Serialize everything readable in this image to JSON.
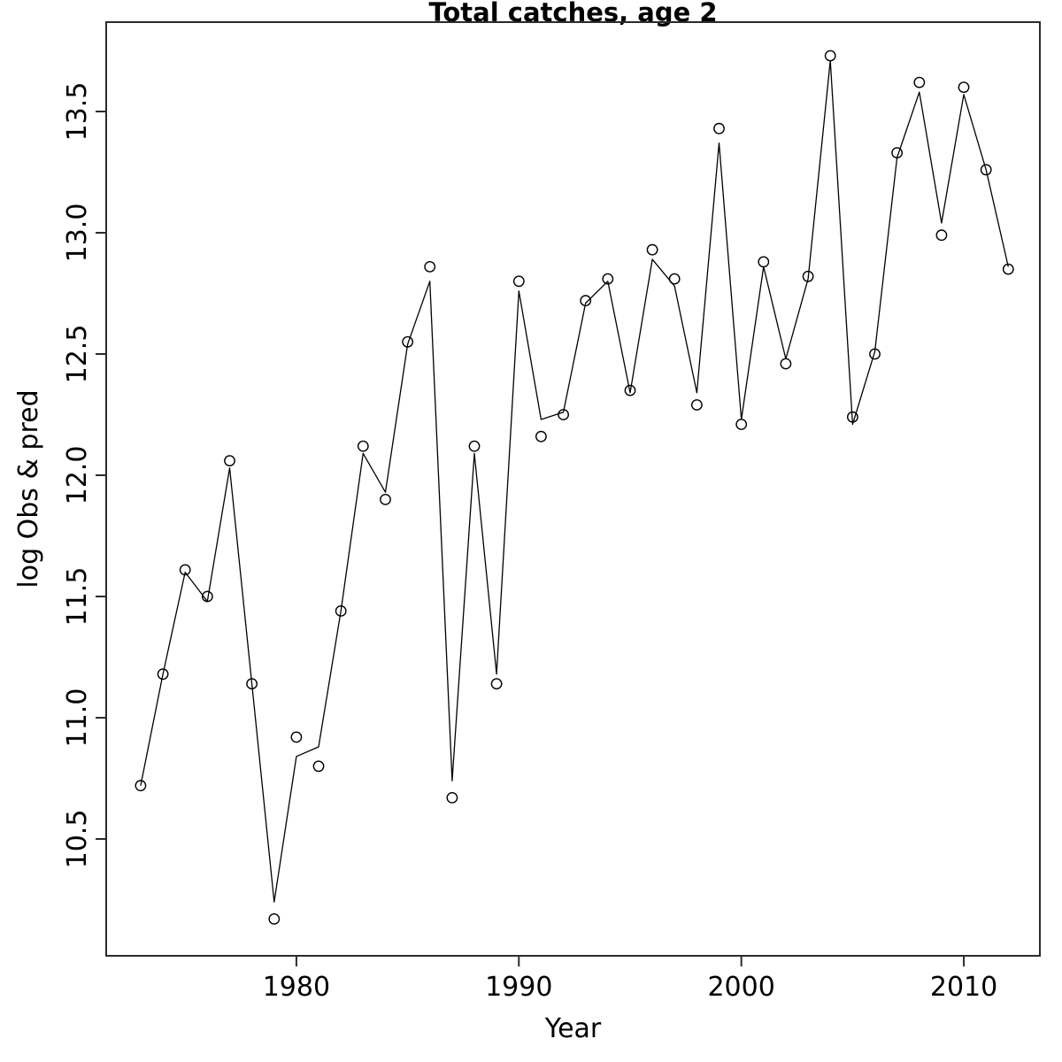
{
  "chart_data": {
    "type": "line",
    "title": "Total catches, age 2",
    "xlabel": "Year",
    "ylabel": "log Obs & pred",
    "x_tick_labels": [
      "1980",
      "1990",
      "2000",
      "2010"
    ],
    "x_tick_values": [
      1980,
      1990,
      2000,
      2010
    ],
    "y_tick_labels": [
      "10.5",
      "11.0",
      "11.5",
      "12.0",
      "12.5",
      "13.0",
      "13.5"
    ],
    "y_tick_values": [
      10.5,
      11.0,
      11.5,
      12.0,
      12.5,
      13.0,
      13.5
    ],
    "xlim": [
      1971.4,
      2013.4
    ],
    "ylim": [
      10.02,
      13.87
    ],
    "grid": false,
    "legend": "none",
    "x": [
      1973,
      1974,
      1975,
      1976,
      1977,
      1978,
      1979,
      1980,
      1981,
      1982,
      1983,
      1984,
      1985,
      1986,
      1987,
      1988,
      1989,
      1990,
      1991,
      1992,
      1993,
      1994,
      1995,
      1996,
      1997,
      1998,
      1999,
      2000,
      2001,
      2002,
      2003,
      2004,
      2005,
      2006,
      2007,
      2008,
      2009,
      2010,
      2011,
      2012
    ],
    "series": [
      {
        "name": "observed",
        "marker": "open-circle",
        "draw": "points",
        "values": [
          10.72,
          11.18,
          11.61,
          11.5,
          12.06,
          11.14,
          10.17,
          10.92,
          10.8,
          11.44,
          12.12,
          11.9,
          12.55,
          12.86,
          10.67,
          12.12,
          11.14,
          12.8,
          12.16,
          12.25,
          12.72,
          12.81,
          12.35,
          12.93,
          12.81,
          12.29,
          13.43,
          12.21,
          12.88,
          12.46,
          12.82,
          13.73,
          12.24,
          12.5,
          13.33,
          13.62,
          12.99,
          13.6,
          13.26,
          12.85
        ]
      },
      {
        "name": "predicted",
        "marker": "none",
        "draw": "line",
        "values": [
          10.72,
          11.18,
          11.6,
          11.48,
          12.03,
          11.14,
          10.24,
          10.84,
          10.88,
          11.44,
          12.09,
          11.93,
          12.54,
          12.8,
          10.74,
          12.09,
          11.18,
          12.76,
          12.23,
          12.26,
          12.71,
          12.8,
          12.34,
          12.89,
          12.78,
          12.34,
          13.37,
          12.23,
          12.86,
          12.48,
          12.81,
          13.71,
          12.21,
          12.51,
          13.31,
          13.58,
          13.04,
          13.57,
          13.26,
          12.86
        ]
      }
    ],
    "colors": {
      "line": "#000000",
      "marker": "#000000",
      "box": "#2b2b2b",
      "background": "#ffffff"
    }
  }
}
